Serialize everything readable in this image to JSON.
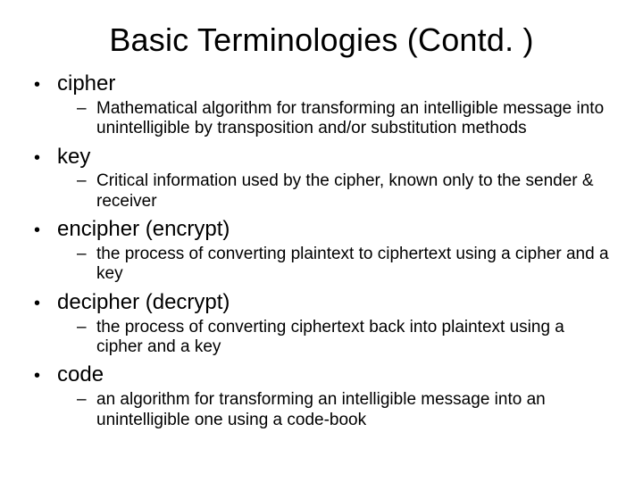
{
  "slide": {
    "title": "Basic Terminologies (Contd. )",
    "title_fontsize": 36,
    "background_color": "#ffffff",
    "text_color": "#000000",
    "font_family": "Arial",
    "bullet_level1_glyph": "•",
    "bullet_level2_glyph": "–",
    "term_fontsize": 24,
    "definition_fontsize": 19,
    "items": [
      {
        "term": "cipher",
        "definition": "Mathematical algorithm for transforming an intelligible message into unintelligible by transposition and/or substitution methods"
      },
      {
        "term": "key",
        "definition": "Critical information used by the cipher, known only to the sender & receiver"
      },
      {
        "term": "encipher (encrypt)",
        "definition": "the process of converting plaintext to ciphertext using a cipher and a key"
      },
      {
        "term": "decipher (decrypt)",
        "definition": "the process of converting ciphertext back into plaintext using a cipher and a key"
      },
      {
        "term": "code",
        "definition": "an algorithm for transforming an intelligible message into an unintelligible one using a code-book"
      }
    ]
  }
}
